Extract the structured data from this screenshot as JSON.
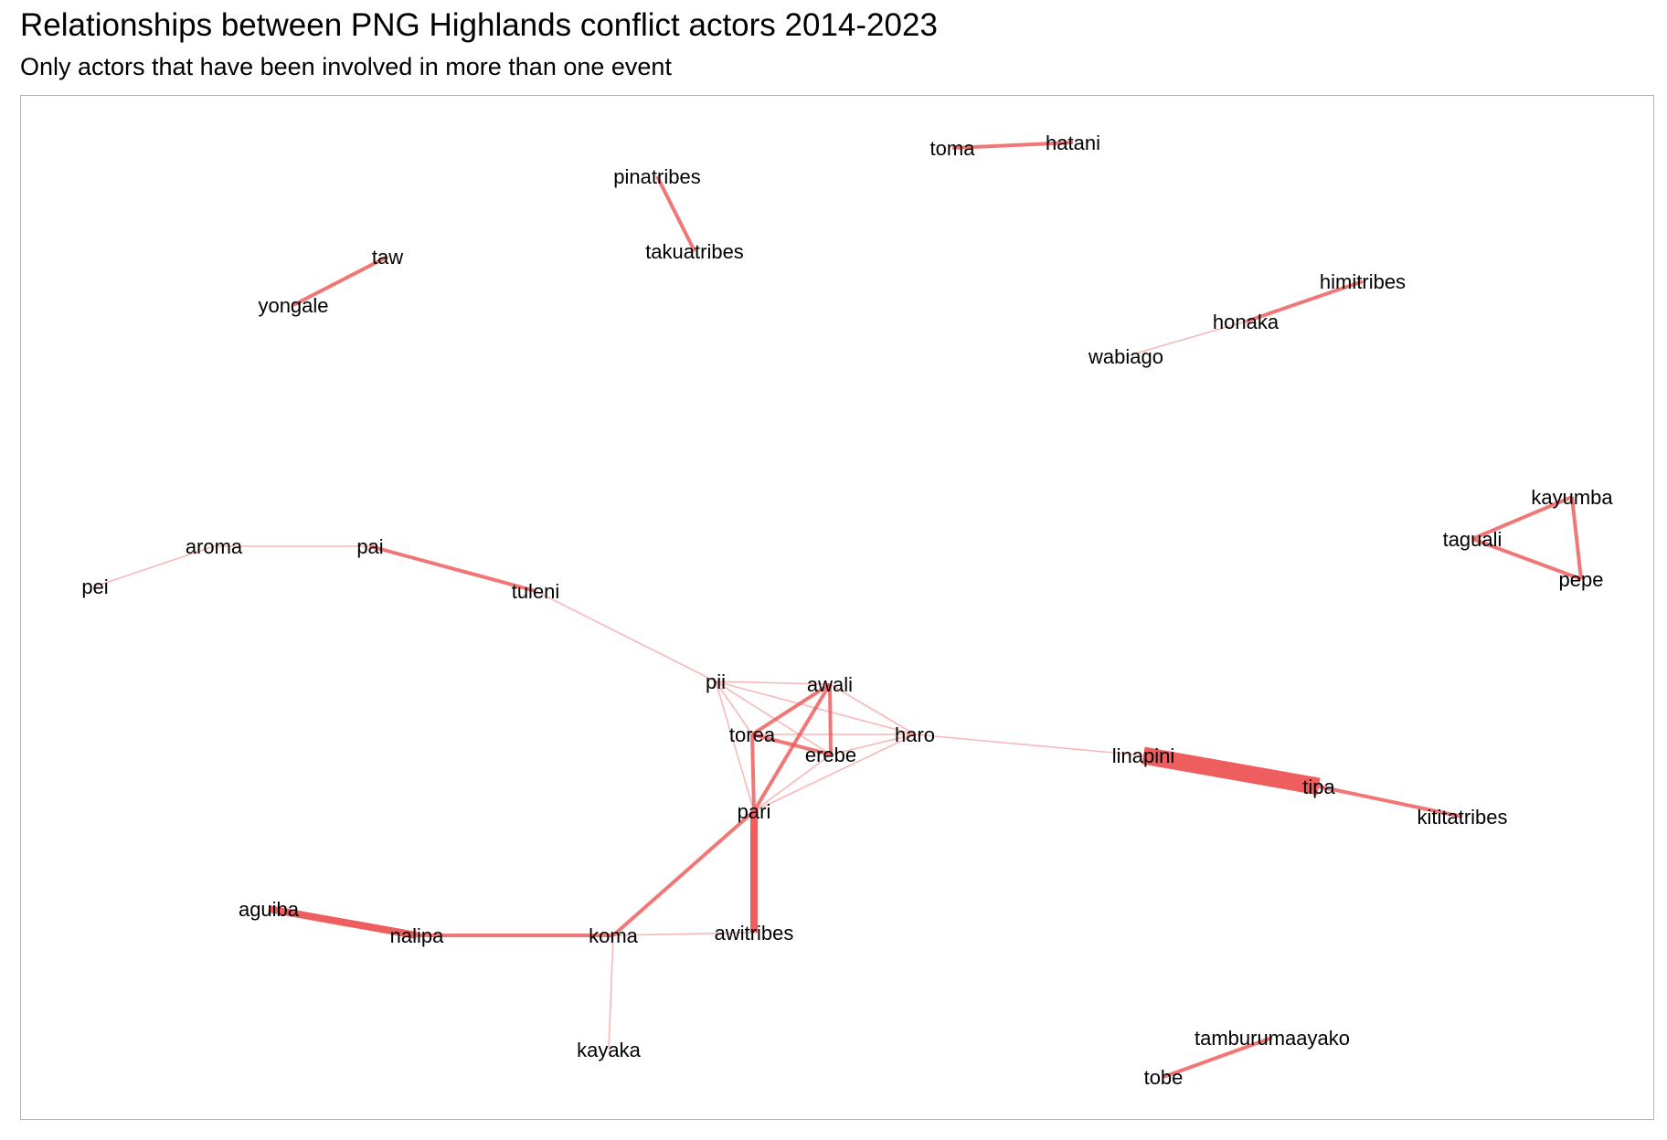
{
  "title": "Relationships between PNG Highlands conflict actors 2014-2023",
  "subtitle": "Only actors that have been involved in more than one event",
  "colors": {
    "edge": "#ee5555",
    "panel_border": "#b3b3b3",
    "label": "#000000"
  },
  "chart_data": {
    "type": "network",
    "nodes": [
      "toma",
      "hatani",
      "pinatribes",
      "takuatribes",
      "taw",
      "yongale",
      "himitribes",
      "honaka",
      "wabiago",
      "kayumba",
      "taguali",
      "pepe",
      "aroma",
      "pai",
      "pei",
      "tuleni",
      "pii",
      "awali",
      "torea",
      "haro",
      "erebe",
      "pari",
      "linapini",
      "tipa",
      "kititatribes",
      "aguiba",
      "nalipa",
      "koma",
      "awitribes",
      "kayaka",
      "tamburumaayako",
      "tobe"
    ],
    "edges": [
      {
        "source": "toma",
        "target": "hatani",
        "weight": 2
      },
      {
        "source": "pinatribes",
        "target": "takuatribes",
        "weight": 2
      },
      {
        "source": "taw",
        "target": "yongale",
        "weight": 2
      },
      {
        "source": "himitribes",
        "target": "honaka",
        "weight": 2
      },
      {
        "source": "honaka",
        "target": "wabiago",
        "weight": 1
      },
      {
        "source": "kayumba",
        "target": "taguali",
        "weight": 2
      },
      {
        "source": "kayumba",
        "target": "pepe",
        "weight": 2
      },
      {
        "source": "taguali",
        "target": "pepe",
        "weight": 2
      },
      {
        "source": "pei",
        "target": "aroma",
        "weight": 1
      },
      {
        "source": "aroma",
        "target": "pai",
        "weight": 1
      },
      {
        "source": "pai",
        "target": "tuleni",
        "weight": 2
      },
      {
        "source": "tuleni",
        "target": "pii",
        "weight": 1
      },
      {
        "source": "pii",
        "target": "awali",
        "weight": 1
      },
      {
        "source": "pii",
        "target": "torea",
        "weight": 1
      },
      {
        "source": "pii",
        "target": "erebe",
        "weight": 1
      },
      {
        "source": "pii",
        "target": "haro",
        "weight": 1
      },
      {
        "source": "pii",
        "target": "pari",
        "weight": 1
      },
      {
        "source": "awali",
        "target": "torea",
        "weight": 2
      },
      {
        "source": "awali",
        "target": "erebe",
        "weight": 2
      },
      {
        "source": "awali",
        "target": "haro",
        "weight": 1
      },
      {
        "source": "awali",
        "target": "pari",
        "weight": 2
      },
      {
        "source": "torea",
        "target": "erebe",
        "weight": 2
      },
      {
        "source": "torea",
        "target": "haro",
        "weight": 1
      },
      {
        "source": "torea",
        "target": "pari",
        "weight": 2
      },
      {
        "source": "erebe",
        "target": "haro",
        "weight": 1
      },
      {
        "source": "erebe",
        "target": "pari",
        "weight": 1
      },
      {
        "source": "haro",
        "target": "pari",
        "weight": 1
      },
      {
        "source": "haro",
        "target": "linapini",
        "weight": 1
      },
      {
        "source": "linapini",
        "target": "tipa",
        "weight": 10
      },
      {
        "source": "tipa",
        "target": "kititatribes",
        "weight": 2
      },
      {
        "source": "pari",
        "target": "awitribes",
        "weight": 4
      },
      {
        "source": "pari",
        "target": "koma",
        "weight": 2
      },
      {
        "source": "aguiba",
        "target": "nalipa",
        "weight": 4
      },
      {
        "source": "nalipa",
        "target": "koma",
        "weight": 2
      },
      {
        "source": "koma",
        "target": "awitribes",
        "weight": 1
      },
      {
        "source": "koma",
        "target": "kayaka",
        "weight": 1
      },
      {
        "source": "tamburumaayako",
        "target": "tobe",
        "weight": 2
      }
    ]
  }
}
